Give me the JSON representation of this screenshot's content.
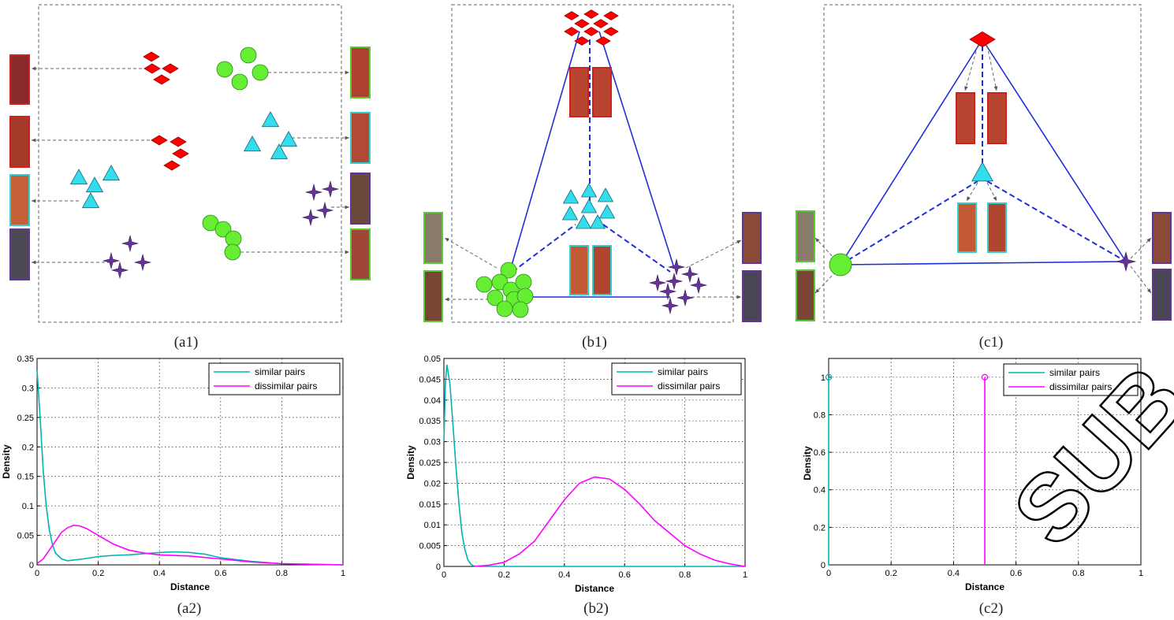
{
  "figure": {
    "captions": {
      "a1": "(a1)",
      "b1": "(b1)",
      "c1": "(c1)",
      "a2": "(a2)",
      "b2": "(b2)",
      "c2": "(c2)"
    },
    "legend": {
      "similar": "similar pairs",
      "dissimilar": "dissimilar pairs"
    },
    "colors": {
      "similar": "#00b3b3",
      "dissimilar": "#ff00ff",
      "red_class": "#ff0000",
      "green_class": "#66ee33",
      "cyan_class": "#33ddee",
      "purple_class": "#663399",
      "edge": "#1f2fd6"
    },
    "watermark": "SUB"
  },
  "chart_data": [
    {
      "id": "a2",
      "type": "line",
      "xlabel": "Distance",
      "ylabel": "Density",
      "xlim": [
        0,
        1
      ],
      "ylim": [
        0,
        0.35
      ],
      "xticks": [
        "0",
        "0.2",
        "0.4",
        "0.6",
        "0.8",
        "1"
      ],
      "yticks": [
        "0",
        "0.05",
        "0.1",
        "0.15",
        "0.2",
        "0.25",
        "0.3",
        "0.35"
      ],
      "grid": true,
      "legend_position": "top-right",
      "series": [
        {
          "name": "similar pairs",
          "x": [
            0,
            0.01,
            0.02,
            0.03,
            0.04,
            0.05,
            0.06,
            0.08,
            0.1,
            0.15,
            0.2,
            0.25,
            0.3,
            0.35,
            0.4,
            0.45,
            0.5,
            0.55,
            0.6,
            0.7,
            0.8,
            0.9,
            1.0
          ],
          "y": [
            0.33,
            0.25,
            0.16,
            0.1,
            0.06,
            0.035,
            0.02,
            0.01,
            0.007,
            0.01,
            0.014,
            0.016,
            0.017,
            0.019,
            0.021,
            0.022,
            0.021,
            0.018,
            0.012,
            0.006,
            0.002,
            0.001,
            0.0
          ]
        },
        {
          "name": "dissimilar pairs",
          "x": [
            0,
            0.02,
            0.04,
            0.06,
            0.08,
            0.1,
            0.12,
            0.14,
            0.16,
            0.2,
            0.25,
            0.3,
            0.35,
            0.4,
            0.5,
            0.6,
            0.7,
            0.8,
            0.9,
            1.0
          ],
          "y": [
            0.002,
            0.01,
            0.025,
            0.04,
            0.055,
            0.063,
            0.067,
            0.066,
            0.062,
            0.05,
            0.035,
            0.025,
            0.02,
            0.017,
            0.015,
            0.01,
            0.005,
            0.002,
            0.001,
            0.0
          ]
        }
      ]
    },
    {
      "id": "b2",
      "type": "line",
      "xlabel": "Distance",
      "ylabel": "Density",
      "xlim": [
        0,
        1
      ],
      "ylim": [
        0,
        0.05
      ],
      "xticks": [
        "0",
        "0.2",
        "0.4",
        "0.6",
        "0.8",
        "1"
      ],
      "yticks": [
        "0",
        "0.005",
        "0.01",
        "0.015",
        "0.02",
        "0.025",
        "0.03",
        "0.035",
        "0.04",
        "0.045",
        "0.05"
      ],
      "grid": true,
      "legend_position": "top-right",
      "series": [
        {
          "name": "similar pairs",
          "x": [
            0,
            0.005,
            0.01,
            0.02,
            0.03,
            0.04,
            0.05,
            0.06,
            0.07,
            0.08,
            0.09,
            0.1,
            0.12,
            0.2,
            1.0
          ],
          "y": [
            0.03,
            0.044,
            0.0485,
            0.044,
            0.034,
            0.024,
            0.015,
            0.008,
            0.004,
            0.0015,
            0.0005,
            0.0001,
            0.0,
            0.0,
            0.0
          ]
        },
        {
          "name": "dissimilar pairs",
          "x": [
            0.1,
            0.15,
            0.2,
            0.25,
            0.3,
            0.35,
            0.4,
            0.45,
            0.5,
            0.55,
            0.6,
            0.65,
            0.7,
            0.75,
            0.8,
            0.85,
            0.9,
            0.95,
            1.0
          ],
          "y": [
            0.0,
            0.0003,
            0.001,
            0.003,
            0.006,
            0.011,
            0.016,
            0.02,
            0.0215,
            0.021,
            0.0185,
            0.015,
            0.011,
            0.008,
            0.005,
            0.003,
            0.0015,
            0.0006,
            0.0
          ]
        }
      ]
    },
    {
      "id": "c2",
      "type": "line",
      "xlabel": "Distance",
      "ylabel": "Density",
      "xlim": [
        0,
        1
      ],
      "ylim": [
        0,
        1.1
      ],
      "xticks": [
        "0",
        "0.2",
        "0.4",
        "0.6",
        "0.8",
        "1"
      ],
      "yticks": [
        "0",
        "0.2",
        "0.4",
        "0.6",
        "0.8",
        "1"
      ],
      "grid": true,
      "legend_position": "top-right",
      "series": [
        {
          "name": "similar pairs",
          "x": [
            0,
            0
          ],
          "y": [
            0,
            1
          ],
          "marker_at_top": "o"
        },
        {
          "name": "dissimilar pairs",
          "x": [
            0.5,
            0.5
          ],
          "y": [
            0,
            1
          ],
          "marker_at_top": "o"
        }
      ]
    }
  ]
}
